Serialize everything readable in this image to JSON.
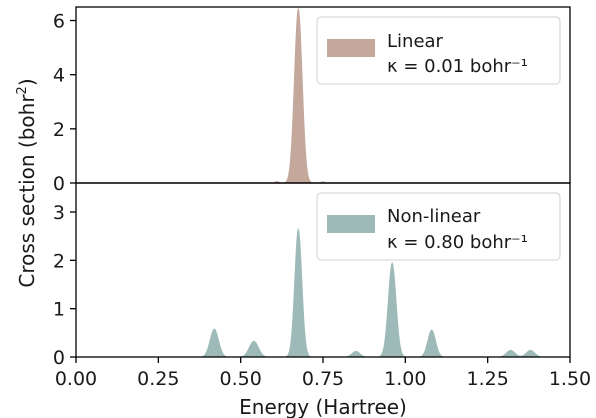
{
  "chart_data": [
    {
      "type": "area",
      "series": [
        {
          "label_line1": "Linear",
          "label_line2": "κ = 0.01 bohr⁻¹",
          "color": "#c4a89c",
          "peaks": [
            {
              "center": 0.675,
              "height": 6.45,
              "width": 0.012
            },
            {
              "center": 0.61,
              "height": 0.06,
              "width": 0.006
            },
            {
              "center": 0.75,
              "height": 0.05,
              "width": 0.006
            }
          ]
        }
      ],
      "xlim": [
        0.0,
        1.5
      ],
      "ylim": [
        0,
        6.5
      ],
      "yticks": [
        "0",
        "2",
        "4",
        "6"
      ],
      "ytick_values": [
        0,
        2,
        4,
        6
      ],
      "legend_position": "top-right"
    },
    {
      "type": "area",
      "series": [
        {
          "label_line1": "Non-linear",
          "label_line2": "κ = 0.80 bohr⁻¹",
          "color": "#9dbab8",
          "peaks": [
            {
              "center": 0.42,
              "height": 0.58,
              "width": 0.013
            },
            {
              "center": 0.54,
              "height": 0.33,
              "width": 0.014
            },
            {
              "center": 0.675,
              "height": 2.65,
              "width": 0.011
            },
            {
              "center": 0.85,
              "height": 0.12,
              "width": 0.012
            },
            {
              "center": 0.96,
              "height": 1.95,
              "width": 0.012
            },
            {
              "center": 1.08,
              "height": 0.56,
              "width": 0.012
            },
            {
              "center": 1.32,
              "height": 0.14,
              "width": 0.013
            },
            {
              "center": 1.38,
              "height": 0.14,
              "width": 0.013
            }
          ]
        }
      ],
      "xlim": [
        0.0,
        1.5
      ],
      "ylim": [
        0,
        3.6
      ],
      "yticks": [
        "0",
        "1",
        "2",
        "3"
      ],
      "ytick_values": [
        0,
        1,
        2,
        3
      ],
      "legend_position": "top-right"
    }
  ],
  "shared": {
    "xlabel": "Energy (Hartree)",
    "ylabel_main": "Cross section (bohr",
    "ylabel_sup": "2",
    "ylabel_close": ")",
    "xticks": [
      "0.00",
      "0.25",
      "0.50",
      "0.75",
      "1.00",
      "1.25",
      "1.50"
    ],
    "xtick_values": [
      0.0,
      0.25,
      0.5,
      0.75,
      1.0,
      1.25,
      1.5
    ]
  }
}
